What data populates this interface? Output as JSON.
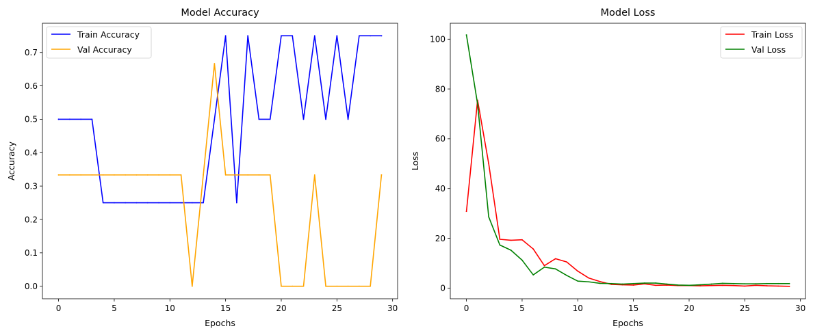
{
  "chart_data": [
    {
      "type": "line",
      "title": "Model Accuracy",
      "xlabel": "Epochs",
      "ylabel": "Accuracy",
      "xlim": [
        -1.45,
        30.45
      ],
      "ylim": [
        -0.0375,
        0.7875
      ],
      "xticks": [
        0,
        5,
        10,
        15,
        20,
        25,
        30
      ],
      "xtick_labels": [
        "0",
        "5",
        "10",
        "15",
        "20",
        "25",
        "30"
      ],
      "yticks": [
        0.0,
        0.1,
        0.2,
        0.3,
        0.4,
        0.5,
        0.6,
        0.7
      ],
      "ytick_labels": [
        "0.0",
        "0.1",
        "0.2",
        "0.3",
        "0.4",
        "0.5",
        "0.6",
        "0.7"
      ],
      "grid": false,
      "legend_position": "top-left",
      "x": [
        0,
        1,
        2,
        3,
        4,
        5,
        6,
        7,
        8,
        9,
        10,
        11,
        12,
        13,
        14,
        15,
        16,
        17,
        18,
        19,
        20,
        21,
        22,
        23,
        24,
        25,
        26,
        27,
        28,
        29
      ],
      "series": [
        {
          "name": "Train Accuracy",
          "color": "#0000ff",
          "values": [
            0.5,
            0.5,
            0.5,
            0.5,
            0.25,
            0.25,
            0.25,
            0.25,
            0.25,
            0.25,
            0.25,
            0.25,
            0.25,
            0.25,
            0.5,
            0.75,
            0.25,
            0.75,
            0.5,
            0.5,
            0.75,
            0.75,
            0.5,
            0.75,
            0.5,
            0.75,
            0.5,
            0.75,
            0.75,
            0.75
          ]
        },
        {
          "name": "Val Accuracy",
          "color": "#ffa500",
          "values": [
            0.3333,
            0.3333,
            0.3333,
            0.3333,
            0.3333,
            0.3333,
            0.3333,
            0.3333,
            0.3333,
            0.3333,
            0.3333,
            0.3333,
            0.0,
            0.3333,
            0.6667,
            0.3333,
            0.3333,
            0.3333,
            0.3333,
            0.3333,
            0.0,
            0.0,
            0.0,
            0.3333,
            0.0,
            0.0,
            0.0,
            0.0,
            0.0,
            0.3333
          ]
        }
      ]
    },
    {
      "type": "line",
      "title": "Model Loss",
      "xlabel": "Epochs",
      "ylabel": "Loss",
      "xlim": [
        -1.45,
        30.45
      ],
      "ylim": [
        -4.3,
        106.4
      ],
      "xticks": [
        0,
        5,
        10,
        15,
        20,
        25,
        30
      ],
      "xtick_labels": [
        "0",
        "5",
        "10",
        "15",
        "20",
        "25",
        "30"
      ],
      "yticks": [
        0,
        20,
        40,
        60,
        80,
        100
      ],
      "ytick_labels": [
        "0",
        "20",
        "40",
        "60",
        "80",
        "100"
      ],
      "grid": false,
      "legend_position": "top-right",
      "x": [
        0,
        1,
        2,
        3,
        4,
        5,
        6,
        7,
        8,
        9,
        10,
        11,
        12,
        13,
        14,
        15,
        16,
        17,
        18,
        19,
        20,
        21,
        22,
        23,
        24,
        25,
        26,
        27,
        28,
        29
      ],
      "series": [
        {
          "name": "Train Loss",
          "color": "#ff0000",
          "values": [
            30.8,
            75.5,
            50.0,
            19.6,
            19.2,
            19.4,
            15.7,
            9.0,
            11.8,
            10.5,
            6.8,
            4.0,
            2.6,
            1.5,
            1.3,
            1.2,
            1.7,
            1.1,
            1.2,
            1.0,
            1.0,
            0.9,
            1.0,
            1.1,
            1.0,
            0.8,
            1.1,
            0.9,
            0.8,
            0.7
          ]
        },
        {
          "name": "Val Loss",
          "color": "#008000",
          "values": [
            101.7,
            74.0,
            28.6,
            17.3,
            15.2,
            11.2,
            5.3,
            8.4,
            7.7,
            5.1,
            2.8,
            2.5,
            1.9,
            1.8,
            1.6,
            1.8,
            2.0,
            2.0,
            1.6,
            1.2,
            1.1,
            1.3,
            1.6,
            1.9,
            1.8,
            1.7,
            1.7,
            1.8,
            1.8,
            1.8
          ]
        }
      ]
    }
  ]
}
